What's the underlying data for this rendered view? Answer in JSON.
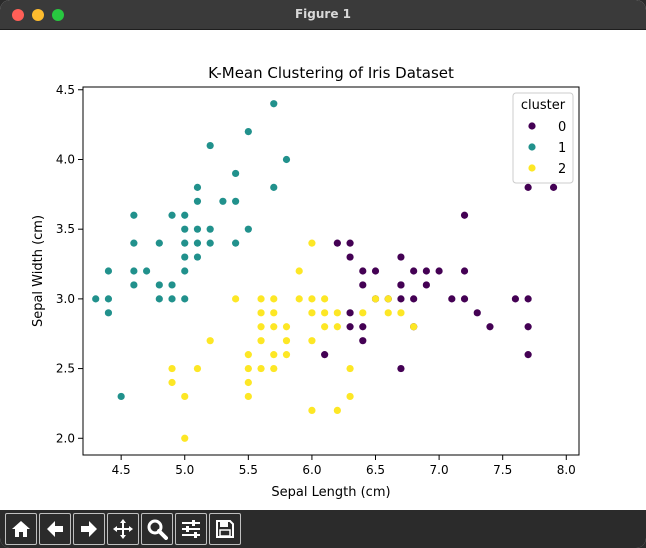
{
  "window": {
    "title": "Figure 1"
  },
  "toolbar": {
    "buttons": [
      "home",
      "back",
      "forward",
      "pan",
      "zoom",
      "configure-subplots",
      "save"
    ]
  },
  "chart_data": {
    "type": "scatter",
    "title": "K-Mean Clustering of Iris Dataset",
    "xlabel": "Sepal Length (cm)",
    "ylabel": "Sepal Width (cm)",
    "xlim": [
      4.2,
      8.1
    ],
    "ylim": [
      1.88,
      4.52
    ],
    "xticks": [
      "4.5",
      "5.0",
      "5.5",
      "6.0",
      "6.5",
      "7.0",
      "7.5",
      "8.0"
    ],
    "yticks": [
      "2.0",
      "2.5",
      "3.0",
      "3.5",
      "4.0",
      "4.5"
    ],
    "grid": false,
    "legend": {
      "title": "cluster",
      "position": "top-right",
      "entries": [
        "0",
        "1",
        "2"
      ]
    },
    "colors": {
      "0": "#440154",
      "1": "#21918c",
      "2": "#fde725"
    },
    "series": [
      {
        "name": "0",
        "points": [
          [
            6.2,
            3.4
          ],
          [
            6.3,
            3.4
          ],
          [
            6.4,
            3.2
          ],
          [
            6.5,
            3.2
          ],
          [
            6.7,
            3.3
          ],
          [
            6.7,
            3.1
          ],
          [
            6.8,
            3.2
          ],
          [
            6.9,
            3.2
          ],
          [
            6.9,
            3.1
          ],
          [
            7.0,
            3.2
          ],
          [
            7.2,
            3.6
          ],
          [
            7.2,
            3.2
          ],
          [
            6.4,
            3.1
          ],
          [
            6.6,
            3.0
          ],
          [
            6.5,
            3.0
          ],
          [
            6.7,
            3.0
          ],
          [
            6.8,
            3.0
          ],
          [
            7.1,
            3.0
          ],
          [
            7.2,
            3.0
          ],
          [
            7.6,
            3.0
          ],
          [
            7.7,
            3.0
          ],
          [
            7.3,
            2.9
          ],
          [
            6.3,
            2.9
          ],
          [
            6.4,
            2.8
          ],
          [
            6.3,
            2.8
          ],
          [
            6.4,
            2.7
          ],
          [
            6.8,
            2.8
          ],
          [
            7.4,
            2.8
          ],
          [
            7.7,
            2.8
          ],
          [
            6.1,
            2.6
          ],
          [
            7.7,
            2.6
          ],
          [
            6.7,
            2.5
          ],
          [
            7.7,
            3.8
          ],
          [
            7.9,
            3.8
          ],
          [
            6.3,
            3.3
          ],
          [
            6.7,
            3.1
          ]
        ]
      },
      {
        "name": "1",
        "points": [
          [
            5.7,
            4.4
          ],
          [
            5.5,
            4.2
          ],
          [
            5.2,
            4.1
          ],
          [
            5.8,
            4.0
          ],
          [
            5.4,
            3.9
          ],
          [
            5.1,
            3.8
          ],
          [
            5.7,
            3.8
          ],
          [
            5.1,
            3.7
          ],
          [
            5.3,
            3.7
          ],
          [
            5.4,
            3.7
          ],
          [
            4.6,
            3.6
          ],
          [
            4.9,
            3.6
          ],
          [
            5.0,
            3.6
          ],
          [
            5.0,
            3.5
          ],
          [
            5.1,
            3.5
          ],
          [
            5.2,
            3.5
          ],
          [
            5.5,
            3.5
          ],
          [
            4.6,
            3.4
          ],
          [
            4.8,
            3.4
          ],
          [
            5.0,
            3.4
          ],
          [
            5.1,
            3.4
          ],
          [
            5.2,
            3.4
          ],
          [
            5.4,
            3.4
          ],
          [
            5.0,
            3.3
          ],
          [
            5.1,
            3.3
          ],
          [
            4.4,
            3.2
          ],
          [
            4.6,
            3.2
          ],
          [
            4.7,
            3.2
          ],
          [
            5.0,
            3.2
          ],
          [
            4.6,
            3.1
          ],
          [
            4.8,
            3.1
          ],
          [
            4.9,
            3.1
          ],
          [
            4.3,
            3.0
          ],
          [
            4.4,
            3.0
          ],
          [
            4.8,
            3.0
          ],
          [
            4.9,
            3.0
          ],
          [
            5.0,
            3.0
          ],
          [
            4.4,
            2.9
          ],
          [
            4.5,
            2.3
          ]
        ]
      },
      {
        "name": "2",
        "points": [
          [
            6.0,
            3.4
          ],
          [
            5.9,
            3.2
          ],
          [
            6.0,
            3.0
          ],
          [
            5.4,
            3.0
          ],
          [
            5.6,
            3.0
          ],
          [
            5.7,
            3.0
          ],
          [
            5.9,
            3.0
          ],
          [
            6.1,
            3.0
          ],
          [
            6.5,
            3.0
          ],
          [
            6.6,
            3.0
          ],
          [
            5.6,
            2.9
          ],
          [
            5.7,
            2.9
          ],
          [
            6.0,
            2.9
          ],
          [
            6.1,
            2.9
          ],
          [
            6.2,
            2.9
          ],
          [
            6.4,
            2.9
          ],
          [
            6.6,
            2.9
          ],
          [
            5.6,
            2.8
          ],
          [
            5.7,
            2.8
          ],
          [
            5.8,
            2.8
          ],
          [
            6.1,
            2.8
          ],
          [
            6.2,
            2.8
          ],
          [
            5.6,
            2.7
          ],
          [
            5.8,
            2.7
          ],
          [
            6.0,
            2.7
          ],
          [
            5.2,
            2.7
          ],
          [
            5.5,
            2.6
          ],
          [
            5.7,
            2.6
          ],
          [
            5.8,
            2.6
          ],
          [
            6.3,
            2.5
          ],
          [
            4.9,
            2.5
          ],
          [
            5.1,
            2.5
          ],
          [
            5.5,
            2.5
          ],
          [
            5.6,
            2.5
          ],
          [
            5.7,
            2.5
          ],
          [
            4.9,
            2.4
          ],
          [
            5.5,
            2.4
          ],
          [
            5.0,
            2.3
          ],
          [
            5.5,
            2.3
          ],
          [
            6.3,
            2.3
          ],
          [
            6.0,
            2.2
          ],
          [
            6.2,
            2.2
          ],
          [
            5.0,
            2.0
          ],
          [
            6.8,
            2.8
          ],
          [
            6.7,
            2.9
          ]
        ]
      }
    ]
  }
}
